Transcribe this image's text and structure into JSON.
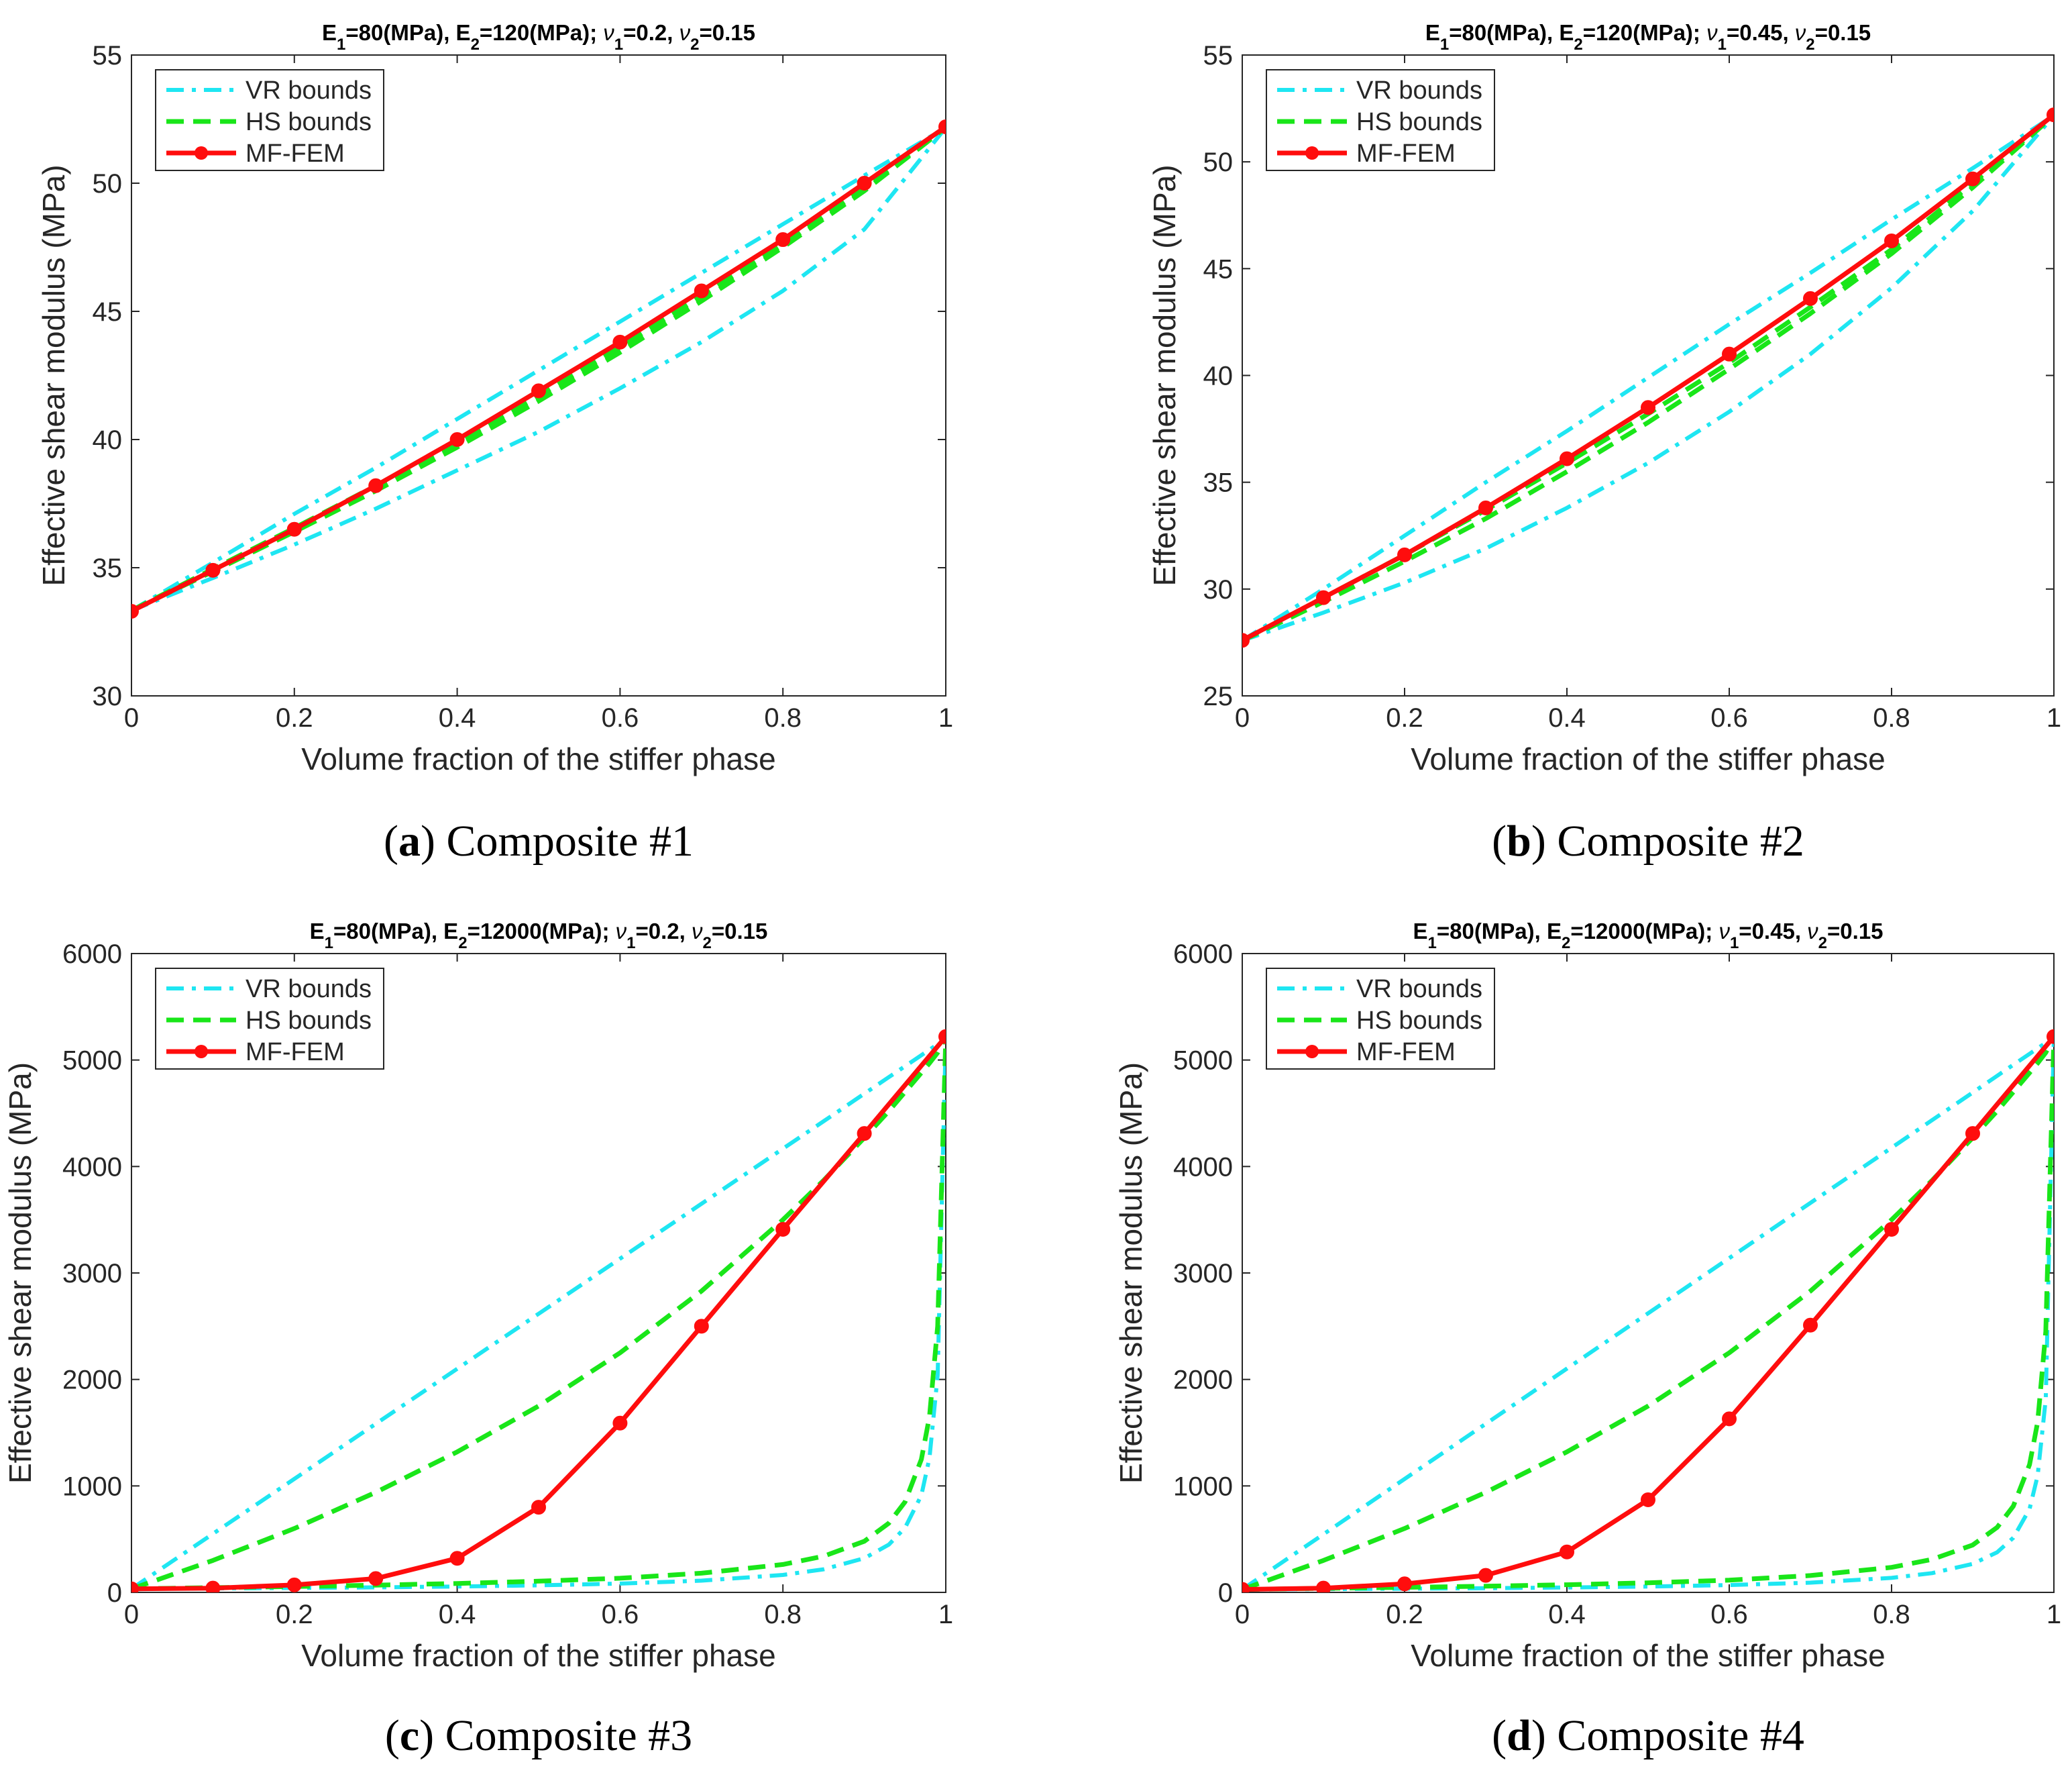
{
  "colors": {
    "vr": "#1ee6f2",
    "hs": "#19e619",
    "mf": "#ff0d0d",
    "axis": "#262626",
    "background": "#ffffff"
  },
  "legend_labels": [
    "VR bounds",
    "HS bounds",
    "MF-FEM"
  ],
  "chart_data": [
    {
      "type": "line",
      "title": "E1=80(MPa), E2=120(MPa); ν1=0.2, ν2=0.15",
      "title_parts": {
        "e1": "80(MPa)",
        "e2": "120(MPa)",
        "nu1": "0.2",
        "nu2": "0.15"
      },
      "caption_letter": "a",
      "caption_text": "Composite #1",
      "xlabel": "Volume fraction of the stiffer phase",
      "ylabel": "Effective shear modulus (MPa)",
      "xlim": [
        0,
        1
      ],
      "ylim": [
        30,
        55
      ],
      "xticks": [
        0,
        0.2,
        0.4,
        0.6,
        0.8,
        1
      ],
      "yticks": [
        30,
        35,
        40,
        45,
        50,
        55
      ],
      "legend_position": "top-left",
      "x": [
        0,
        0.1,
        0.2,
        0.3,
        0.4,
        0.5,
        0.6,
        0.7,
        0.8,
        0.9,
        1
      ],
      "series": [
        {
          "name": "VR bounds (upper)",
          "values": [
            33.33,
            35.2,
            37.1,
            38.9,
            40.8,
            42.7,
            44.6,
            46.5,
            48.4,
            50.3,
            52.17
          ]
        },
        {
          "name": "VR bounds (lower)",
          "values": [
            33.33,
            34.6,
            35.9,
            37.3,
            38.8,
            40.3,
            42.0,
            43.8,
            45.8,
            48.2,
            52.17
          ]
        },
        {
          "name": "HS bounds (upper)",
          "values": [
            33.33,
            34.95,
            36.55,
            38.2,
            39.9,
            41.7,
            43.6,
            45.6,
            47.6,
            49.8,
            52.17
          ]
        },
        {
          "name": "HS bounds (lower)",
          "values": [
            33.33,
            34.85,
            36.4,
            38.0,
            39.7,
            41.5,
            43.4,
            45.4,
            47.5,
            49.7,
            52.17
          ]
        },
        {
          "name": "MF-FEM",
          "values": [
            33.3,
            34.9,
            36.5,
            38.2,
            40.0,
            41.9,
            43.8,
            45.8,
            47.8,
            50.0,
            52.2
          ]
        }
      ]
    },
    {
      "type": "line",
      "title": "E1=80(MPa), E2=120(MPa); ν1=0.45, ν2=0.15",
      "title_parts": {
        "e1": "80(MPa)",
        "e2": "120(MPa)",
        "nu1": "0.45",
        "nu2": "0.15"
      },
      "caption_letter": "b",
      "caption_text": "Composite #2",
      "xlabel": "Volume fraction of the stiffer phase",
      "ylabel": "Effective shear modulus (MPa)",
      "xlim": [
        0,
        1
      ],
      "ylim": [
        25,
        55
      ],
      "xticks": [
        0,
        0.2,
        0.4,
        0.6,
        0.8,
        1
      ],
      "yticks": [
        25,
        30,
        35,
        40,
        45,
        50,
        55
      ],
      "legend_position": "top-left",
      "x": [
        0,
        0.1,
        0.2,
        0.3,
        0.4,
        0.5,
        0.6,
        0.7,
        0.8,
        0.9,
        1
      ],
      "series": [
        {
          "name": "VR bounds (upper)",
          "values": [
            27.59,
            30.0,
            32.5,
            35.0,
            37.4,
            39.9,
            42.4,
            44.8,
            47.3,
            49.7,
            52.17
          ]
        },
        {
          "name": "VR bounds (lower)",
          "values": [
            27.59,
            28.9,
            30.3,
            31.9,
            33.8,
            35.9,
            38.3,
            41.0,
            44.1,
            47.7,
            52.17
          ]
        },
        {
          "name": "HS bounds (upper)",
          "values": [
            27.59,
            29.6,
            31.6,
            33.7,
            35.9,
            38.2,
            40.6,
            43.2,
            45.9,
            49.0,
            52.17
          ]
        },
        {
          "name": "HS bounds (lower)",
          "values": [
            27.59,
            29.4,
            31.3,
            33.3,
            35.5,
            37.8,
            40.3,
            42.9,
            45.7,
            48.8,
            52.17
          ]
        },
        {
          "name": "MF-FEM",
          "values": [
            27.6,
            29.6,
            31.6,
            33.8,
            36.1,
            38.5,
            41.0,
            43.6,
            46.3,
            49.2,
            52.2
          ]
        }
      ]
    },
    {
      "type": "line",
      "title": "E1=80(MPa), E2=12000(MPa); ν1=0.2, ν2=0.15",
      "title_parts": {
        "e1": "80(MPa)",
        "e2": "12000(MPa)",
        "nu1": "0.2",
        "nu2": "0.15"
      },
      "caption_letter": "c",
      "caption_text": "Composite #3",
      "xlabel": "Volume fraction of the stiffer phase",
      "ylabel": "Effective shear modulus (MPa)",
      "xlim": [
        0,
        1
      ],
      "ylim": [
        0,
        6000
      ],
      "xticks": [
        0,
        0.2,
        0.4,
        0.6,
        0.8,
        1
      ],
      "yticks": [
        0,
        1000,
        2000,
        3000,
        4000,
        5000,
        6000
      ],
      "legend_position": "top-left",
      "x": [
        0,
        0.1,
        0.2,
        0.3,
        0.4,
        0.5,
        0.6,
        0.7,
        0.8,
        0.85,
        0.9,
        0.93,
        0.95,
        0.97,
        0.98,
        0.99,
        1
      ],
      "series": [
        {
          "name": "VR bounds (upper)",
          "values": [
            33.3,
            550,
            1066,
            1583,
            2100,
            2617,
            3134,
            3650,
            4167,
            4425,
            4684,
            4839,
            4942,
            5045,
            5097,
            5149,
            5217
          ]
        },
        {
          "name": "VR bounds (lower)",
          "values": [
            33.3,
            37,
            41.6,
            47.5,
            55.4,
            66.4,
            82.8,
            110,
            164,
            217,
            321,
            448,
            607,
            912,
            1263,
            2040,
            5217
          ]
        },
        {
          "name": "HS bounds (upper)",
          "values": [
            33.3,
            300,
            600,
            940,
            1320,
            1750,
            2250,
            2830,
            3500,
            3870,
            4270,
            4520,
            4700,
            4880,
            4970,
            5070,
            5217
          ]
        },
        {
          "name": "HS bounds (lower)",
          "values": [
            33.3,
            45,
            55,
            68,
            84,
            105,
            133,
            180,
            262,
            340,
            480,
            650,
            850,
            1250,
            1650,
            2500,
            5217
          ]
        },
        {
          "name": "MF-FEM",
          "x": [
            0,
            0.1,
            0.2,
            0.3,
            0.4,
            0.5,
            0.6,
            0.7,
            0.8,
            0.9,
            1
          ],
          "values": [
            33,
            40,
            70,
            130,
            320,
            800,
            1590,
            2500,
            3410,
            4310,
            5220
          ]
        }
      ]
    },
    {
      "type": "line",
      "title": "E1=80(MPa), E2=12000(MPa); ν1=0.45, ν2=0.15",
      "title_parts": {
        "e1": "80(MPa)",
        "e2": "12000(MPa)",
        "nu1": "0.45",
        "nu2": "0.15"
      },
      "caption_letter": "d",
      "caption_text": "Composite #4",
      "xlabel": "Volume fraction of the stiffer phase",
      "ylabel": "Effective shear modulus (MPa)",
      "xlim": [
        0,
        1
      ],
      "ylim": [
        0,
        6000
      ],
      "xticks": [
        0,
        0.2,
        0.4,
        0.6,
        0.8,
        1
      ],
      "yticks": [
        0,
        1000,
        2000,
        3000,
        4000,
        5000,
        6000
      ],
      "legend_position": "top-left",
      "x": [
        0,
        0.1,
        0.2,
        0.3,
        0.4,
        0.5,
        0.6,
        0.7,
        0.8,
        0.85,
        0.9,
        0.93,
        0.95,
        0.97,
        0.98,
        0.99,
        1
      ],
      "series": [
        {
          "name": "VR bounds (upper)",
          "values": [
            27.6,
            546,
            1065,
            1583,
            2102,
            2621,
            3139,
            3658,
            4176,
            4436,
            4695,
            4851,
            4955,
            5058,
            5110,
            5162,
            5217
          ]
        },
        {
          "name": "VR bounds (lower)",
          "values": [
            27.6,
            30.6,
            34.4,
            39.3,
            45.8,
            54.9,
            68.6,
            91.2,
            136,
            181,
            268,
            376,
            513,
            782,
            1097,
            1818,
            5217
          ]
        },
        {
          "name": "HS bounds (upper)",
          "values": [
            27.6,
            300,
            600,
            940,
            1320,
            1750,
            2250,
            2830,
            3500,
            3870,
            4270,
            4520,
            4700,
            4880,
            4970,
            5070,
            5217
          ]
        },
        {
          "name": "HS bounds (lower)",
          "values": [
            27.6,
            38,
            47,
            58,
            72,
            90,
            115,
            158,
            235,
            310,
            445,
            610,
            810,
            1200,
            1600,
            2450,
            5217
          ]
        },
        {
          "name": "MF-FEM",
          "x": [
            0,
            0.1,
            0.2,
            0.3,
            0.4,
            0.5,
            0.6,
            0.7,
            0.8,
            0.9,
            1
          ],
          "values": [
            28,
            40,
            80,
            160,
            380,
            870,
            1630,
            2510,
            3410,
            4310,
            5220
          ]
        }
      ]
    }
  ]
}
